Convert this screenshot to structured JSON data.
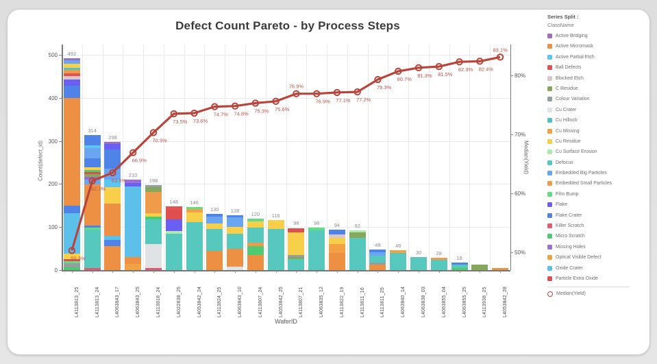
{
  "page": {
    "background": "#e2e2e2",
    "card_background": "#ffffff"
  },
  "chart": {
    "title": "Defect Count Pareto - by Process Steps",
    "x_axis": {
      "label": "WaferID"
    },
    "y_left": {
      "label": "Count(defect_id)",
      "ticks": [
        "0",
        "100",
        "200",
        "300",
        "400",
        "500"
      ]
    },
    "y_right": {
      "label": "Median(Yield)",
      "ticks": [
        "80%",
        "70%",
        "60%",
        "50%"
      ]
    }
  },
  "legend": {
    "title": "Series Split :",
    "subtitle": "ClassName",
    "items": [
      {
        "label": "Active Bridging",
        "color": "#9a6dc8"
      },
      {
        "label": "Active Micromask",
        "color": "#ed9044"
      },
      {
        "label": "Active Partial Etch",
        "color": "#5bc6f2"
      },
      {
        "label": "Ball Defects",
        "color": "#e25251"
      },
      {
        "label": "Blocked Etch",
        "color": "#d9c7cb"
      },
      {
        "label": "C Residue",
        "color": "#86a85a"
      },
      {
        "label": "Colour Variation",
        "color": "#93a0a0"
      },
      {
        "label": "Cu Crater",
        "color": "#dfe3e6"
      },
      {
        "label": "Cu Hillock",
        "color": "#4fc2c2"
      },
      {
        "label": "Cu Missing",
        "color": "#f3a145"
      },
      {
        "label": "Cu Residue",
        "color": "#f8cf4a"
      },
      {
        "label": "Cu Surface Erosion",
        "color": "#aeeaae"
      },
      {
        "label": "Defocus",
        "color": "#57c8bd"
      },
      {
        "label": "Embedded Big Particles",
        "color": "#69a5f0"
      },
      {
        "label": "Embedded Small Particles",
        "color": "#ef9b4c"
      },
      {
        "label": "Film Bump",
        "color": "#62dc86"
      },
      {
        "label": "Flake",
        "color": "#6b5ef2"
      },
      {
        "label": "Flake Crater",
        "color": "#5083e8"
      },
      {
        "label": "Killer Scratch",
        "color": "#e35a6e"
      },
      {
        "label": "Micro Scratch",
        "color": "#4fca70"
      },
      {
        "label": "Missing Holes",
        "color": "#9b70d6"
      },
      {
        "label": "Optical Visible Defect",
        "color": "#eca342"
      },
      {
        "label": "Oxide Crater",
        "color": "#5dc0ea"
      },
      {
        "label": "Particle Extra Oxide",
        "color": "#df4f4d"
      }
    ],
    "median_item": {
      "label": "Median(Yield)",
      "color": "#bf4136"
    }
  },
  "colors": {
    "line": "#b9443a",
    "line_label": "#c4524a",
    "bar_value_label": "#8d8d8d",
    "grid": "#e7eaee",
    "axis": "#777777"
  },
  "chart_data": {
    "type": "bar+line (Pareto: stacked bars with cumulative-style yield line)",
    "title": "Defect Count Pareto - by Process Steps",
    "xlabel": "WaferID",
    "ylabel_left": "Count(defect_id)",
    "ylabel_right": "Median(Yield)",
    "ylim_left": [
      0,
      520
    ],
    "ylim_right_percent": [
      50,
      80
    ],
    "grid": true,
    "legend_position": "right",
    "categories": [
      "L4113813_25",
      "L4113813_24",
      "L4063843_17",
      "L4063843_25",
      "L4113818_24",
      "L4022838_25",
      "L4053842_24",
      "L4113824_25",
      "L4063843_10",
      "L4113807_24",
      "L4053842_25",
      "L4113807_21",
      "L4063835_12",
      "L4113822_19",
      "L4113811_16",
      "L4113811_25",
      "L4063840_14",
      "L4063838_03",
      "L4063855_04",
      "L4063855_25",
      "L4113938_25",
      "L4053842_28"
    ],
    "bar_totals": [
      492,
      314,
      298,
      210,
      198,
      148,
      146,
      130,
      128,
      120,
      116,
      98,
      98,
      94,
      92,
      48,
      46,
      30,
      28,
      18,
      12,
      5
    ],
    "bar_value_labels": [
      "492",
      "314",
      "298",
      "210",
      "198",
      "148",
      "146",
      "130",
      "128",
      "120",
      "116",
      "98",
      "98",
      "94",
      "92",
      "48",
      "46",
      "30",
      "28",
      "18",
      "",
      ""
    ],
    "line_series_name": "Median(Yield)",
    "line_values_percent": [
      50.3,
      62.1,
      63.5,
      66.9,
      70.3,
      73.5,
      73.6,
      74.7,
      74.8,
      75.3,
      75.6,
      76.9,
      76.9,
      77.1,
      77.2,
      79.3,
      80.7,
      81.3,
      81.5,
      82.3,
      82.4,
      83.1
    ],
    "line_value_labels": [
      "50.3%",
      "62.1%",
      "63.5%",
      "66.9%",
      "70.3%",
      "73.5%",
      "73.6%",
      "74.7%",
      "74.8%",
      "75.3%",
      "75.6%",
      "76.9%",
      "76.9%",
      "77.1%",
      "77.2%",
      "79.3%",
      "80.7%",
      "81.3%",
      "81.5%",
      "82.3%",
      "82.4%",
      "83.1%"
    ],
    "line_label_side": [
      "below",
      "below",
      "below",
      "below",
      "below",
      "below",
      "below",
      "below",
      "below",
      "below",
      "below",
      "above",
      "below",
      "below",
      "below",
      "below",
      "below",
      "below",
      "below",
      "below",
      "below",
      "above"
    ],
    "class_colors": {
      "active-bridging": "#9a6dc8",
      "active-micromask": "#ed9044",
      "active-partial-etch": "#5bc6f2",
      "ball-defects": "#e25251",
      "blocked-etch": "#d9c7cb",
      "c-residue": "#86a85a",
      "colour-variation": "#93a0a0",
      "cu-crater": "#dfe3e6",
      "cu-hillock": "#4fc2c2",
      "cu-missing": "#f3a145",
      "cu-residue": "#f8cf4a",
      "cu-surface-erosion": "#aeeaae",
      "defocus": "#57c8bd",
      "embedded-big-particles": "#69a5f0",
      "embedded-small-particles": "#ef9b4c",
      "film-bump": "#62dc86",
      "flake": "#6b5ef2",
      "flake-crater": "#5083e8",
      "killer-scratch": "#e35a6e",
      "micro-scratch": "#4fca70",
      "missing-holes": "#9b70d6",
      "optical-visible-defect": "#eca342",
      "oxide-crater": "#5dc0ea",
      "particle-extra-oxide": "#df4f4d"
    },
    "bars_segments": [
      [
        [
          "micro-scratch",
          6
        ],
        [
          "colour-variation",
          10
        ],
        [
          "film-bump",
          4
        ],
        [
          "particle-extra-oxide",
          6
        ],
        [
          "cu-residue",
          12
        ],
        [
          "oxide-crater",
          95
        ],
        [
          "flake-crater",
          16
        ],
        [
          "active-micromask",
          250
        ],
        [
          "flake-crater",
          30
        ],
        [
          "flake",
          14
        ],
        [
          "blocked-etch",
          8
        ],
        [
          "ball-defects",
          6
        ],
        [
          "embedded-small-particles",
          8
        ],
        [
          "cu-hillock",
          5
        ],
        [
          "cu-residue",
          10
        ],
        [
          "embedded-big-particles",
          8
        ],
        [
          "active-bridging",
          4
        ]
      ],
      [
        [
          "killer-scratch",
          4
        ],
        [
          "defocus",
          90
        ],
        [
          "film-bump",
          4
        ],
        [
          "flake-crater",
          6
        ],
        [
          "active-micromask",
          95
        ],
        [
          "embedded-big-particles",
          12
        ],
        [
          "active-bridging",
          6
        ],
        [
          "c-residue",
          6
        ],
        [
          "particle-extra-oxide",
          4
        ],
        [
          "micro-scratch",
          6
        ],
        [
          "cu-residue",
          6
        ],
        [
          "flake-crater",
          20
        ],
        [
          "embedded-big-particles",
          25
        ],
        [
          "active-partial-etch",
          6
        ],
        [
          "flake-crater",
          24
        ]
      ],
      [
        [
          "active-micromask",
          55
        ],
        [
          "flake-crater",
          15
        ],
        [
          "oxide-crater",
          10
        ],
        [
          "active-micromask",
          75
        ],
        [
          "cu-residue",
          38
        ],
        [
          "active-partial-etch",
          18
        ],
        [
          "embedded-big-particles",
          25
        ],
        [
          "flake-crater",
          45
        ],
        [
          "flake",
          12
        ],
        [
          "active-bridging",
          5
        ]
      ],
      [
        [
          "cu-missing",
          15
        ],
        [
          "active-micromask",
          15
        ],
        [
          "oxide-crater",
          165
        ],
        [
          "flake",
          8
        ],
        [
          "missing-holes",
          7
        ]
      ],
      [
        [
          "killer-scratch",
          5
        ],
        [
          "cu-crater",
          55
        ],
        [
          "defocus",
          58
        ],
        [
          "micro-scratch",
          6
        ],
        [
          "cu-residue",
          8
        ],
        [
          "embedded-small-particles",
          50
        ],
        [
          "c-residue",
          10
        ],
        [
          "colour-variation",
          6
        ]
      ],
      [
        [
          "defocus",
          85
        ],
        [
          "cu-surface-erosion",
          5
        ],
        [
          "flake",
          28
        ],
        [
          "particle-extra-oxide",
          20
        ],
        [
          "ball-defects",
          10
        ]
      ],
      [
        [
          "defocus",
          112
        ],
        [
          "cu-residue",
          22
        ],
        [
          "cu-missing",
          8
        ],
        [
          "film-bump",
          4
        ]
      ],
      [
        [
          "active-micromask",
          45
        ],
        [
          "defocus",
          50
        ],
        [
          "cu-residue",
          14
        ],
        [
          "embedded-big-particles",
          15
        ],
        [
          "flake-crater",
          6
        ]
      ],
      [
        [
          "cu-crater",
          8
        ],
        [
          "active-micromask",
          42
        ],
        [
          "defocus",
          35
        ],
        [
          "cu-residue",
          15
        ],
        [
          "embedded-big-particles",
          22
        ],
        [
          "flake-crater",
          6
        ]
      ],
      [
        [
          "active-micromask",
          35
        ],
        [
          "micro-scratch",
          20
        ],
        [
          "embedded-small-particles",
          8
        ],
        [
          "defocus",
          35
        ],
        [
          "cu-residue",
          15
        ],
        [
          "film-bump",
          7
        ]
      ],
      [
        [
          "defocus",
          95
        ],
        [
          "cu-residue",
          21
        ]
      ],
      [
        [
          "defocus",
          25
        ],
        [
          "c-residue",
          6
        ],
        [
          "colour-variation",
          4
        ],
        [
          "cu-residue",
          52
        ],
        [
          "particle-extra-oxide",
          8
        ],
        [
          "ball-defects",
          3
        ]
      ],
      [
        [
          "defocus",
          92
        ],
        [
          "film-bump",
          6
        ]
      ],
      [
        [
          "active-micromask",
          40
        ],
        [
          "cu-missing",
          20
        ],
        [
          "cu-residue",
          15
        ],
        [
          "blocked-etch",
          8
        ],
        [
          "flake-crater",
          11
        ]
      ],
      [
        [
          "defocus",
          75
        ],
        [
          "c-residue",
          12
        ],
        [
          "cu-surface-erosion",
          5
        ]
      ],
      [
        [
          "active-micromask",
          12
        ],
        [
          "colour-variation",
          6
        ],
        [
          "defocus",
          15
        ],
        [
          "embedded-big-particles",
          8
        ],
        [
          "flake-crater",
          7
        ]
      ],
      [
        [
          "defocus",
          40
        ],
        [
          "cu-missing",
          6
        ]
      ],
      [
        [
          "defocus",
          30
        ]
      ],
      [
        [
          "defocus",
          24
        ],
        [
          "embedded-small-particles",
          4
        ]
      ],
      [
        [
          "micro-scratch",
          4
        ],
        [
          "defocus",
          8
        ],
        [
          "flake-crater",
          6
        ]
      ],
      [
        [
          "c-residue",
          12
        ]
      ],
      [
        [
          "active-micromask",
          5
        ]
      ]
    ]
  }
}
